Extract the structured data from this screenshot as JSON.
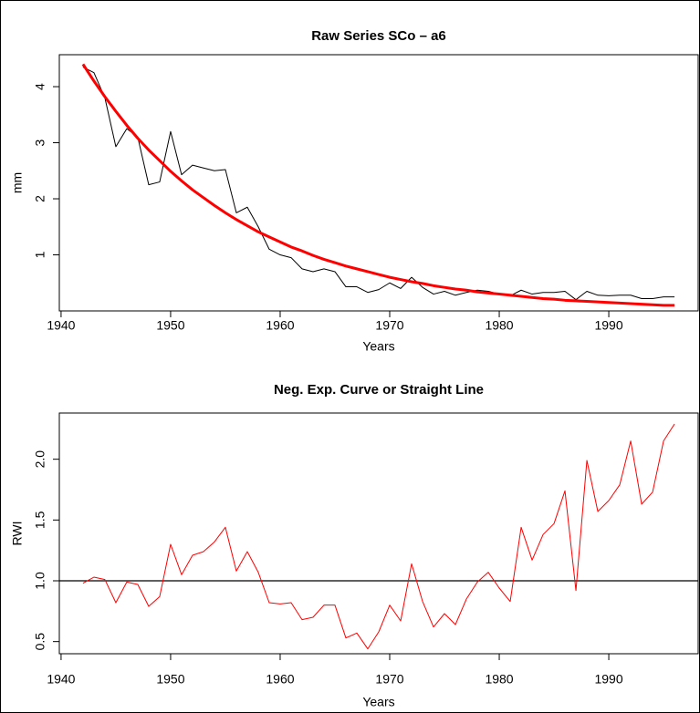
{
  "chart_data": [
    {
      "type": "line",
      "title": "Raw Series  SCo – a6",
      "x_label": "Years",
      "y_label": "mm",
      "x": [
        1942,
        1943,
        1944,
        1945,
        1946,
        1947,
        1948,
        1949,
        1950,
        1951,
        1952,
        1953,
        1954,
        1955,
        1956,
        1957,
        1958,
        1959,
        1960,
        1961,
        1962,
        1963,
        1964,
        1965,
        1966,
        1967,
        1968,
        1969,
        1970,
        1971,
        1972,
        1973,
        1974,
        1975,
        1976,
        1977,
        1978,
        1979,
        1980,
        1981,
        1982,
        1983,
        1984,
        1985,
        1986,
        1987,
        1988,
        1989,
        1990,
        1991,
        1992,
        1993,
        1994,
        1995,
        1996
      ],
      "series": [
        {
          "color": "#000000",
          "width": 1,
          "values": [
            4.35,
            4.25,
            3.8,
            2.93,
            3.25,
            3.1,
            2.25,
            2.3,
            3.2,
            2.43,
            2.6,
            2.55,
            2.5,
            2.52,
            1.75,
            1.85,
            1.5,
            1.1,
            1.0,
            0.95,
            0.75,
            0.7,
            0.75,
            0.7,
            0.43,
            0.43,
            0.33,
            0.38,
            0.5,
            0.4,
            0.6,
            0.42,
            0.3,
            0.35,
            0.28,
            0.33,
            0.37,
            0.35,
            0.3,
            0.27,
            0.37,
            0.3,
            0.33,
            0.33,
            0.35,
            0.2,
            0.35,
            0.28,
            0.27,
            0.28,
            0.28,
            0.22,
            0.22,
            0.25,
            0.25
          ]
        },
        {
          "color": "#ff0000",
          "width": 3,
          "values": [
            4.4,
            4.1,
            3.82,
            3.56,
            3.31,
            3.08,
            2.87,
            2.68,
            2.49,
            2.32,
            2.16,
            2.02,
            1.88,
            1.75,
            1.63,
            1.52,
            1.41,
            1.32,
            1.23,
            1.14,
            1.07,
            0.99,
            0.92,
            0.86,
            0.8,
            0.75,
            0.7,
            0.65,
            0.6,
            0.56,
            0.52,
            0.49,
            0.45,
            0.42,
            0.39,
            0.37,
            0.34,
            0.32,
            0.3,
            0.28,
            0.26,
            0.24,
            0.22,
            0.21,
            0.19,
            0.18,
            0.17,
            0.16,
            0.15,
            0.14,
            0.13,
            0.12,
            0.11,
            0.1,
            0.1
          ]
        }
      ],
      "xlim": [
        1939.84,
        1998.16
      ],
      "xticks": [
        1940,
        1950,
        1960,
        1970,
        1980,
        1990
      ],
      "ylim": [
        0.0,
        4.57
      ],
      "yticks": [
        1,
        2,
        3,
        4
      ]
    },
    {
      "type": "line",
      "title": "Neg. Exp. Curve or Straight Line",
      "x_label": "Years",
      "y_label": "RWI",
      "x": [
        1942,
        1943,
        1944,
        1945,
        1946,
        1947,
        1948,
        1949,
        1950,
        1951,
        1952,
        1953,
        1954,
        1955,
        1956,
        1957,
        1958,
        1959,
        1960,
        1961,
        1962,
        1963,
        1964,
        1965,
        1966,
        1967,
        1968,
        1969,
        1970,
        1971,
        1972,
        1973,
        1974,
        1975,
        1976,
        1977,
        1978,
        1979,
        1980,
        1981,
        1982,
        1983,
        1984,
        1985,
        1986,
        1987,
        1988,
        1989,
        1990,
        1991,
        1992,
        1993,
        1994,
        1995,
        1996
      ],
      "series": [
        {
          "color": "#ff0000",
          "width": 1,
          "values": [
            0.98,
            1.03,
            1.01,
            0.82,
            0.99,
            0.97,
            0.79,
            0.87,
            1.3,
            1.05,
            1.21,
            1.24,
            1.32,
            1.44,
            1.08,
            1.24,
            1.07,
            0.82,
            0.81,
            0.82,
            0.68,
            0.7,
            0.8,
            0.8,
            0.53,
            0.57,
            0.44,
            0.58,
            0.8,
            0.67,
            1.14,
            0.83,
            0.62,
            0.73,
            0.64,
            0.85,
            0.99,
            1.07,
            0.94,
            0.83,
            1.44,
            1.17,
            1.38,
            1.47,
            1.74,
            0.92,
            1.99,
            1.57,
            1.66,
            1.79,
            2.15,
            1.63,
            1.73,
            2.15,
            2.29
          ]
        }
      ],
      "hline": 1,
      "xlim": [
        1939.84,
        1998.16
      ],
      "xticks": [
        1940,
        1950,
        1960,
        1970,
        1980,
        1990
      ],
      "ylim": [
        0.4,
        2.38
      ],
      "yticks": [
        0.5,
        {
          "value": 1,
          "label": "1.0"
        },
        1.5,
        {
          "value": 2,
          "label": "2.0"
        }
      ]
    }
  ]
}
